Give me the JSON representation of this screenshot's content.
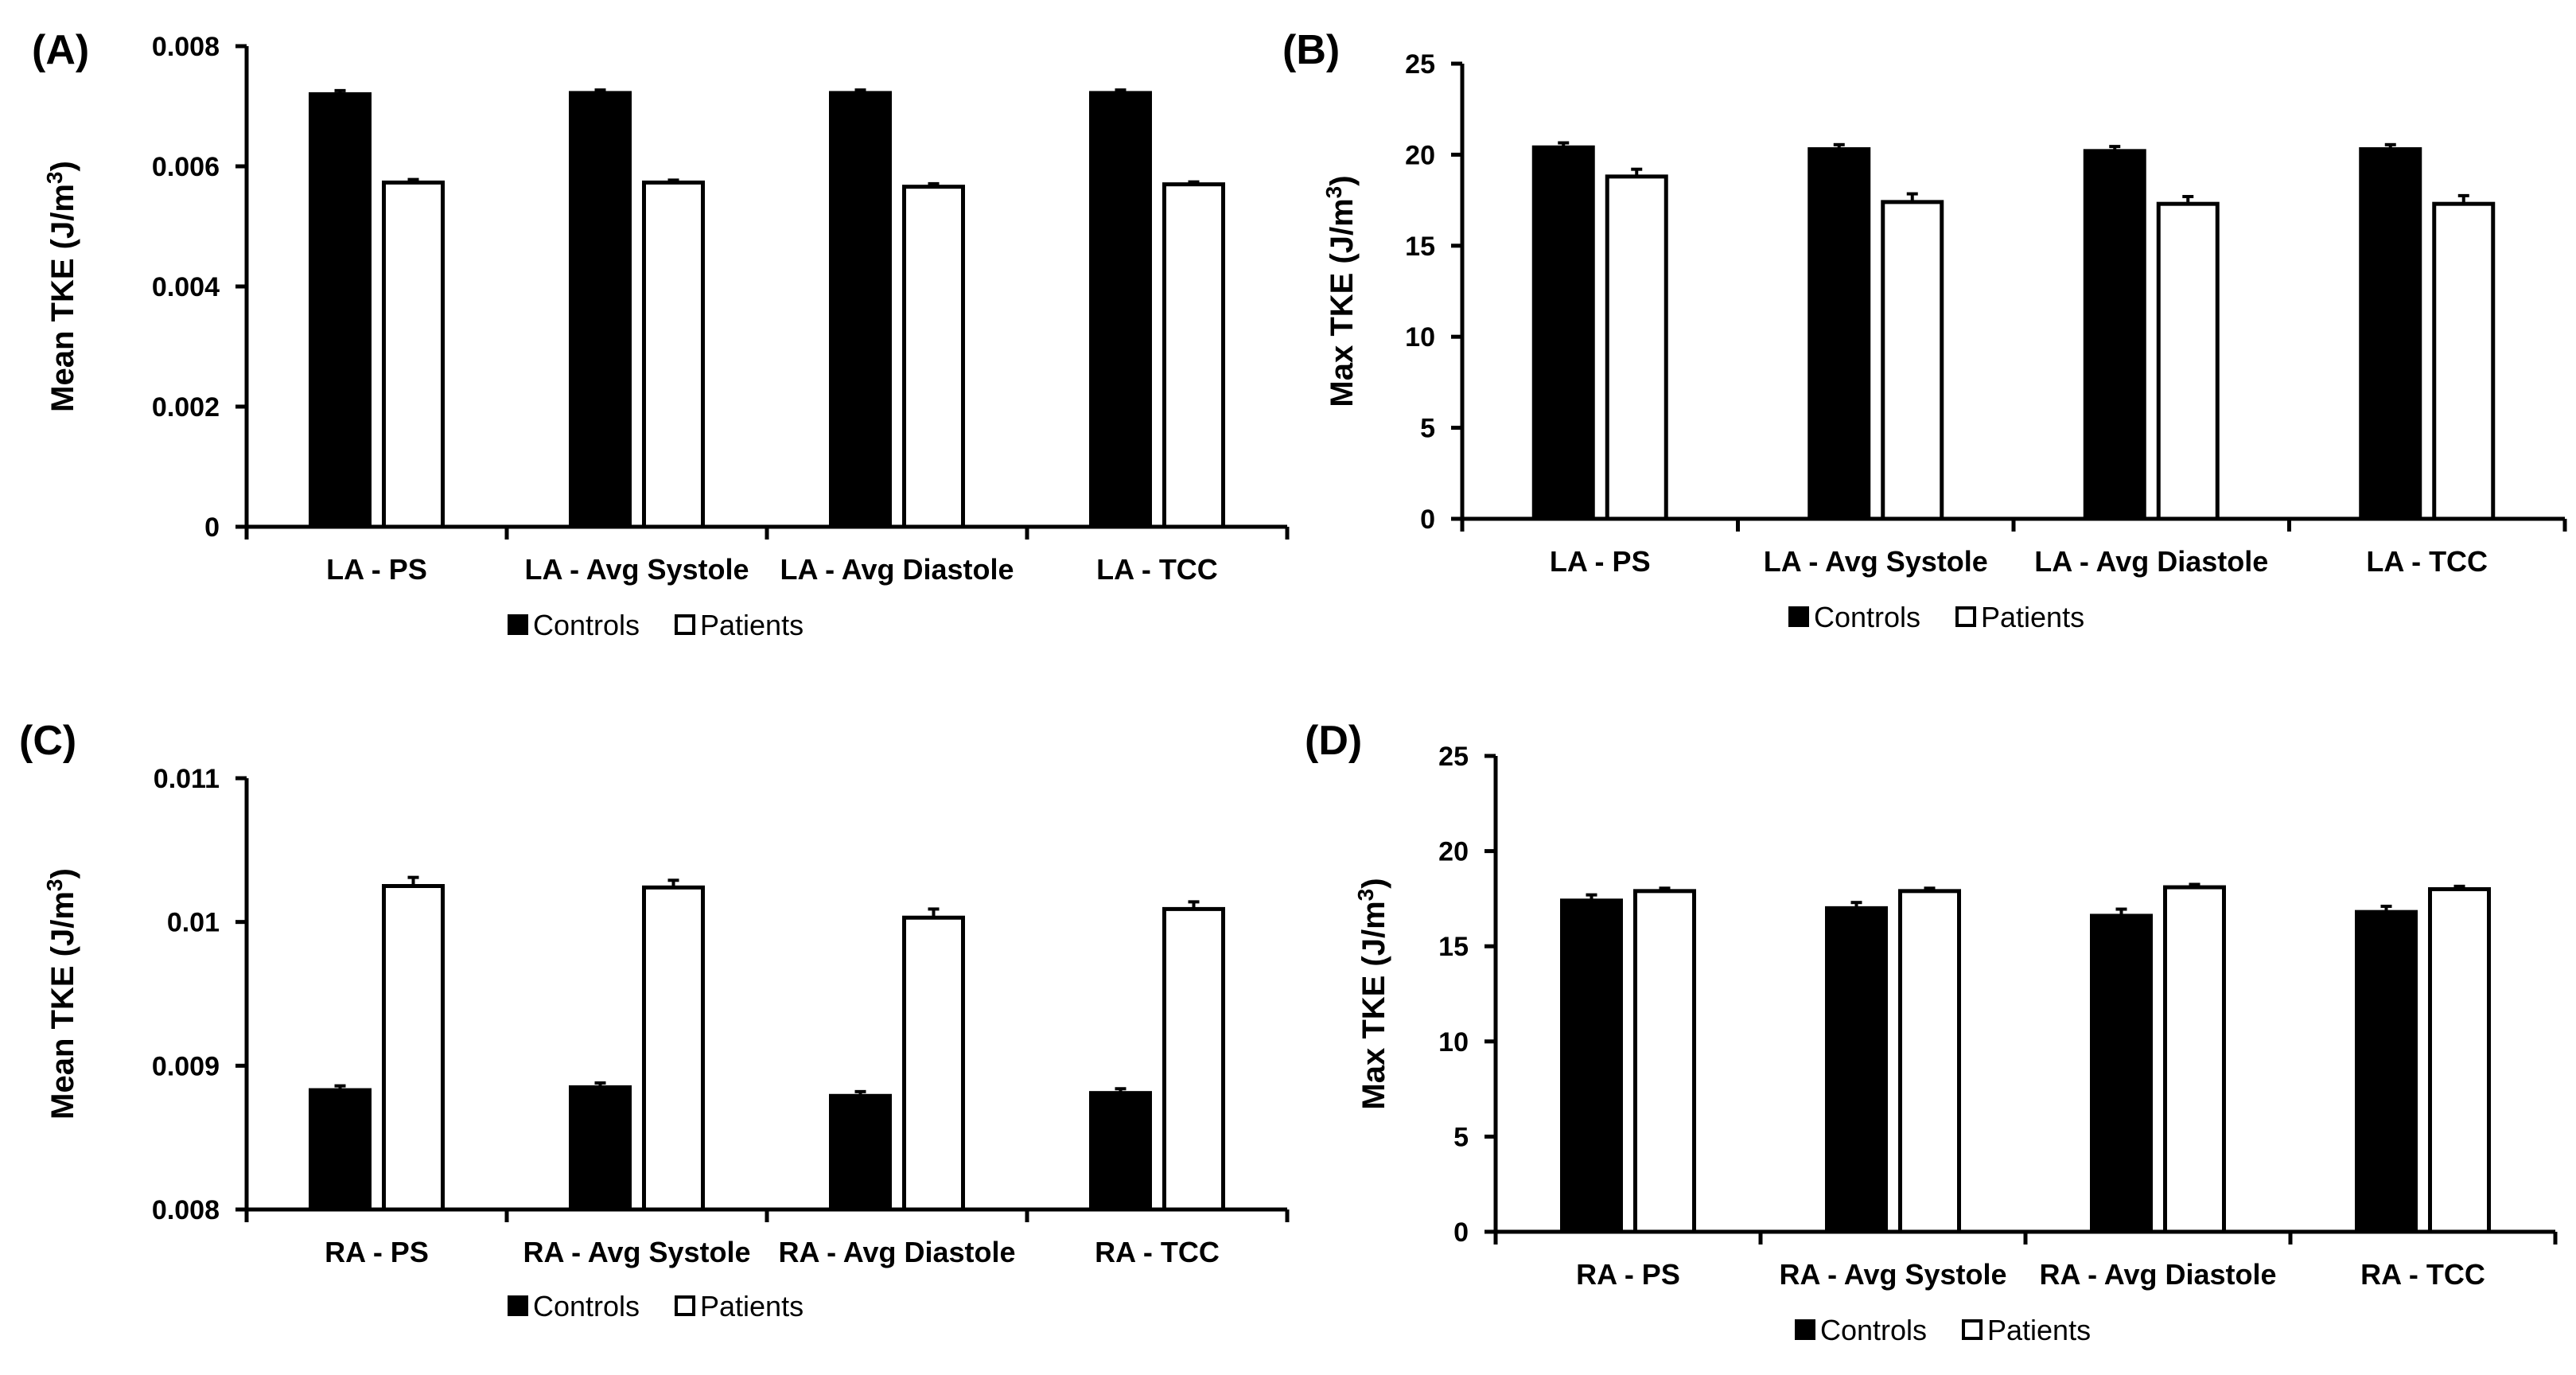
{
  "chart_data": [
    {
      "panel": "(A)",
      "type": "bar",
      "ylabel": "Mean TKE (J/m",
      "ylabel_sup": "3",
      "ylabel_end": ")",
      "ylim": [
        0,
        0.008
      ],
      "yticks": [
        "0",
        "0.002",
        "0.004",
        "0.006",
        "0.008"
      ],
      "ytick_values": [
        0,
        0.002,
        0.004,
        0.006,
        0.008
      ],
      "categories": [
        "LA - PS",
        "LA - Avg Systole",
        "LA - Avg Diastole",
        "LA - TCC"
      ],
      "series": [
        {
          "name": "Controls",
          "values": [
            0.0072,
            0.00722,
            0.00722,
            0.00722
          ],
          "errors": [
            6e-05,
            5e-05,
            5e-05,
            5e-05
          ],
          "color": "#000000"
        },
        {
          "name": "Patients",
          "values": [
            0.00573,
            0.00573,
            0.00566,
            0.0057
          ],
          "errors": [
            5e-05,
            4e-05,
            5e-05,
            4e-05
          ],
          "color": "#ffffff"
        }
      ],
      "legend": [
        "Controls",
        "Patients"
      ]
    },
    {
      "panel": "(B)",
      "type": "bar",
      "ylabel": "Max TKE (J/m",
      "ylabel_sup": "3",
      "ylabel_end": ")",
      "ylim": [
        0,
        25
      ],
      "yticks": [
        "0",
        "5",
        "10",
        "15",
        "20",
        "25"
      ],
      "ytick_values": [
        0,
        5,
        10,
        15,
        20,
        25
      ],
      "categories": [
        "LA - PS",
        "LA - Avg Systole",
        "LA - Avg Diastole",
        "LA - TCC"
      ],
      "series": [
        {
          "name": "Controls",
          "values": [
            20.4,
            20.3,
            20.2,
            20.3
          ],
          "errors": [
            0.25,
            0.25,
            0.25,
            0.25
          ],
          "color": "#000000"
        },
        {
          "name": "Patients",
          "values": [
            18.8,
            17.4,
            17.3,
            17.3
          ],
          "errors": [
            0.4,
            0.45,
            0.4,
            0.45
          ],
          "color": "#ffffff"
        }
      ],
      "legend": [
        "Controls",
        "Patients"
      ]
    },
    {
      "panel": "(C)",
      "type": "bar",
      "ylabel": "Mean TKE (J/m",
      "ylabel_sup": "3",
      "ylabel_end": ")",
      "ylim": [
        0.008,
        0.011
      ],
      "yticks": [
        "0.008",
        "0.009",
        "0.01",
        "0.011"
      ],
      "ytick_values": [
        0.008,
        0.009,
        0.01,
        0.011
      ],
      "categories": [
        "RA  - PS",
        "RA - Avg Systole",
        "RA - Avg Diastole",
        "RA - TCC"
      ],
      "series": [
        {
          "name": "Controls",
          "values": [
            0.00883,
            0.00885,
            0.00879,
            0.00881
          ],
          "errors": [
            3e-05,
            3e-05,
            3e-05,
            3e-05
          ],
          "color": "#000000"
        },
        {
          "name": "Patients",
          "values": [
            0.01025,
            0.01024,
            0.01003,
            0.01009
          ],
          "errors": [
            6e-05,
            5e-05,
            6e-05,
            5e-05
          ],
          "color": "#ffffff"
        }
      ],
      "legend": [
        "Controls",
        "Patients"
      ]
    },
    {
      "panel": "(D)",
      "type": "bar",
      "ylabel": "Max TKE (J/m",
      "ylabel_sup": "3",
      "ylabel_end": ")",
      "ylim": [
        0,
        25
      ],
      "yticks": [
        "0",
        "5",
        "10",
        "15",
        "20",
        "25"
      ],
      "ytick_values": [
        0,
        5,
        10,
        15,
        20,
        25
      ],
      "categories": [
        "RA  - PS",
        "RA - Avg Systole",
        "RA - Avg Diastole",
        "RA - TCC"
      ],
      "series": [
        {
          "name": "Controls",
          "values": [
            17.4,
            17.0,
            16.6,
            16.8
          ],
          "errors": [
            0.3,
            0.3,
            0.35,
            0.3
          ],
          "color": "#000000"
        },
        {
          "name": "Patients",
          "values": [
            17.9,
            17.9,
            18.1,
            18.0
          ],
          "errors": [
            0.15,
            0.15,
            0.15,
            0.15
          ],
          "color": "#ffffff"
        }
      ],
      "legend": [
        "Controls",
        "Patients"
      ]
    }
  ]
}
